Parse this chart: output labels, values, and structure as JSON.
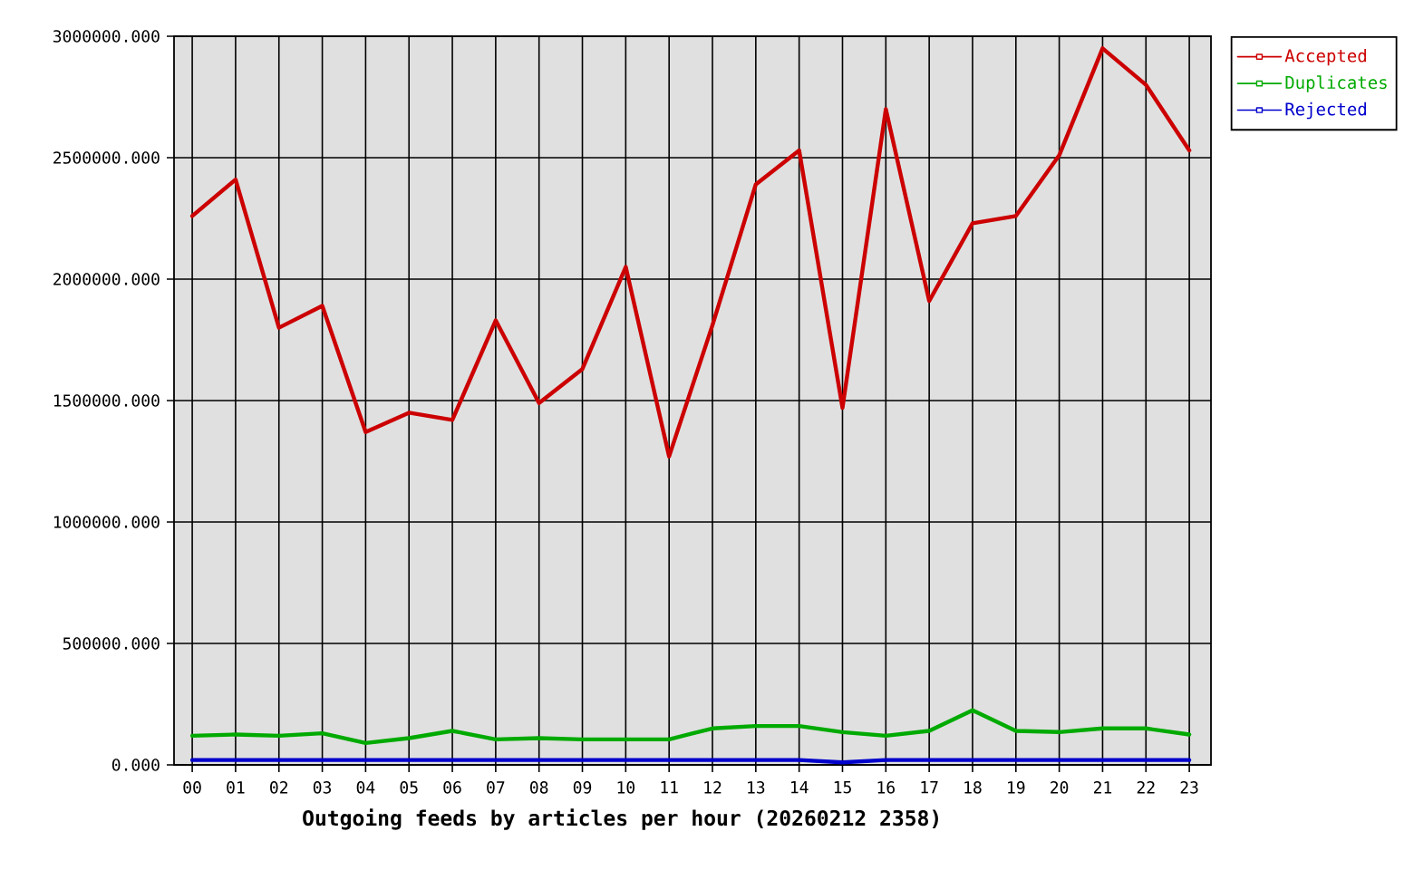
{
  "chart_data": {
    "type": "line",
    "xlabel": "Outgoing feeds by articles per hour (20260212 2358)",
    "categories": [
      "00",
      "01",
      "02",
      "03",
      "04",
      "05",
      "06",
      "07",
      "08",
      "09",
      "10",
      "11",
      "12",
      "13",
      "14",
      "15",
      "16",
      "17",
      "18",
      "19",
      "20",
      "21",
      "22",
      "23"
    ],
    "series": [
      {
        "name": "Accepted",
        "color": "#cc0000",
        "values": [
          2260000,
          2410000,
          1800000,
          1890000,
          1370000,
          1450000,
          1420000,
          1830000,
          1490000,
          1630000,
          2050000,
          1270000,
          1810000,
          2390000,
          2530000,
          1470000,
          2700000,
          1910000,
          2230000,
          2260000,
          2510000,
          2950000,
          2800000,
          2530000
        ]
      },
      {
        "name": "Duplicates",
        "color": "#00aa00",
        "values": [
          120000,
          125000,
          120000,
          130000,
          90000,
          110000,
          140000,
          105000,
          110000,
          105000,
          105000,
          105000,
          150000,
          160000,
          160000,
          135000,
          120000,
          140000,
          225000,
          140000,
          135000,
          150000,
          150000,
          125000
        ]
      },
      {
        "name": "Rejected",
        "color": "#0000cc",
        "values": [
          20000,
          20000,
          20000,
          20000,
          20000,
          20000,
          20000,
          20000,
          20000,
          20000,
          20000,
          20000,
          20000,
          20000,
          20000,
          10000,
          20000,
          20000,
          20000,
          20000,
          20000,
          20000,
          20000,
          20000
        ]
      }
    ],
    "ylim": [
      0,
      3000000
    ],
    "yticks": [
      {
        "value": 0,
        "label": "0.000"
      },
      {
        "value": 500000,
        "label": "500000.000"
      },
      {
        "value": 1000000,
        "label": "1000000.000"
      },
      {
        "value": 1500000,
        "label": "1500000.000"
      },
      {
        "value": 2000000,
        "label": "2000000.000"
      },
      {
        "value": 2500000,
        "label": "2500000.000"
      },
      {
        "value": 3000000,
        "label": "3000000.000"
      }
    ],
    "grid": true,
    "legend": "top right"
  }
}
